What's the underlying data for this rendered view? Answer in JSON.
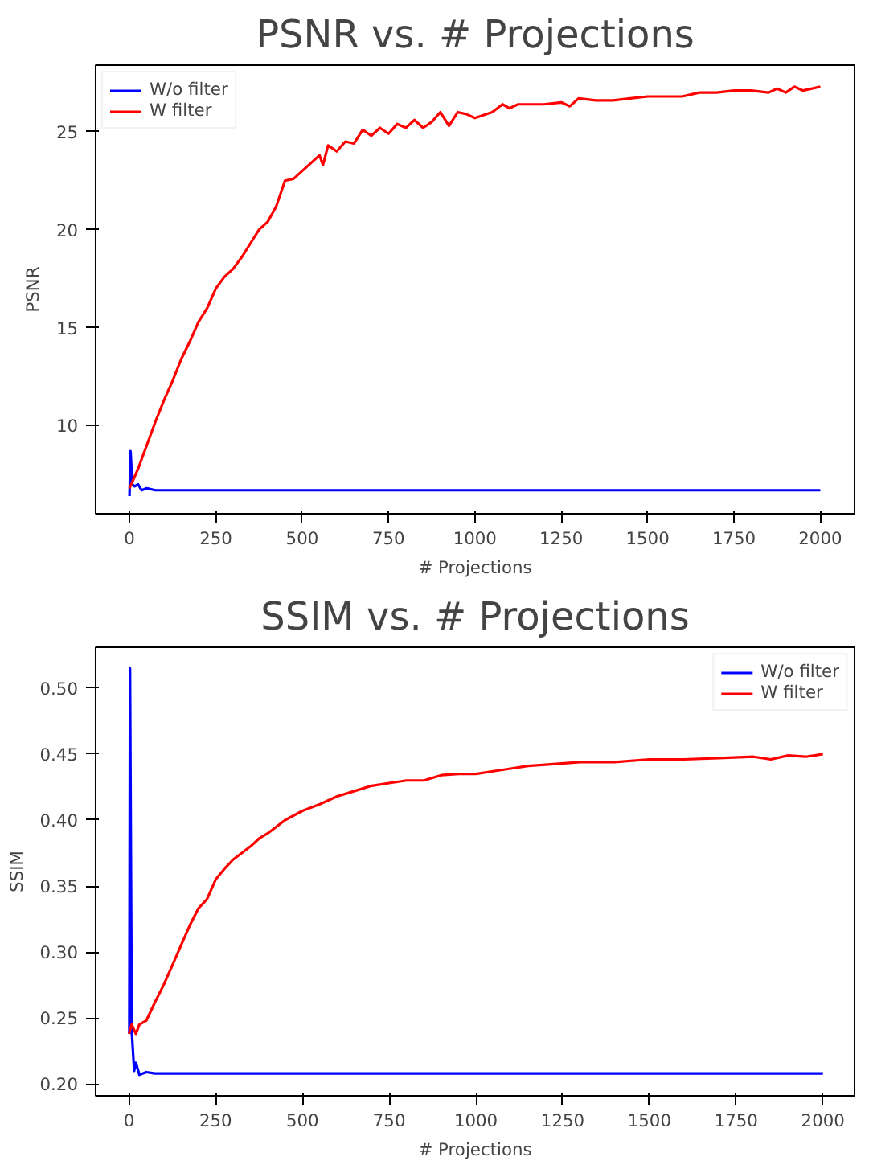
{
  "chart_data": [
    {
      "type": "line",
      "title": "PSNR vs. # Projections",
      "xlabel": "# Projections",
      "ylabel": "PSNR",
      "xlim": [
        -98,
        2099
      ],
      "ylim": [
        5.5,
        28.4
      ],
      "xticks": [
        0,
        250,
        500,
        750,
        1000,
        1250,
        1500,
        1750,
        2000
      ],
      "yticks": [
        10,
        15,
        20,
        25
      ],
      "grid": false,
      "legend": "top left",
      "series": [
        {
          "name": "W/o filter",
          "color": "#0000ff",
          "x": [
            0,
            3,
            8,
            15,
            25,
            35,
            50,
            75,
            100,
            2000
          ],
          "values": [
            6.4,
            8.7,
            7.0,
            6.9,
            7.0,
            6.7,
            6.8,
            6.7,
            6.7,
            6.7
          ]
        },
        {
          "name": "W filter",
          "color": "#ff0000",
          "x": [
            0,
            10,
            25,
            50,
            75,
            100,
            125,
            150,
            175,
            200,
            225,
            250,
            275,
            300,
            325,
            350,
            375,
            400,
            425,
            450,
            475,
            500,
            525,
            550,
            560,
            575,
            600,
            625,
            650,
            675,
            700,
            725,
            750,
            775,
            800,
            825,
            850,
            875,
            900,
            925,
            950,
            975,
            1000,
            1050,
            1080,
            1100,
            1125,
            1200,
            1250,
            1275,
            1300,
            1350,
            1400,
            1450,
            1500,
            1550,
            1600,
            1650,
            1700,
            1750,
            1800,
            1850,
            1875,
            1900,
            1925,
            1950,
            2000
          ],
          "values": [
            6.8,
            7.2,
            7.8,
            9.0,
            10.2,
            11.3,
            12.3,
            13.4,
            14.3,
            15.3,
            16.0,
            17.0,
            17.6,
            18.0,
            18.6,
            19.3,
            20.0,
            20.4,
            21.2,
            22.5,
            22.6,
            23.0,
            23.4,
            23.8,
            23.3,
            24.3,
            24.0,
            24.5,
            24.4,
            25.1,
            24.8,
            25.2,
            24.9,
            25.4,
            25.2,
            25.6,
            25.2,
            25.5,
            26.0,
            25.3,
            26.0,
            25.9,
            25.7,
            26.0,
            26.4,
            26.2,
            26.4,
            26.4,
            26.5,
            26.3,
            26.7,
            26.6,
            26.6,
            26.7,
            26.8,
            26.8,
            26.8,
            27.0,
            27.0,
            27.1,
            27.1,
            27.0,
            27.2,
            27.0,
            27.3,
            27.1,
            27.3
          ]
        }
      ]
    },
    {
      "type": "line",
      "title": "SSIM vs. # Projections",
      "xlabel": "# Projections",
      "ylabel": "SSIM",
      "xlim": [
        -96,
        2091
      ],
      "ylim": [
        0.191,
        0.531
      ],
      "xticks": [
        0,
        250,
        500,
        750,
        1000,
        1250,
        1500,
        1750,
        2000
      ],
      "yticks": [
        {
          "value": 0.2,
          "label": "0.20"
        },
        {
          "value": 0.25,
          "label": "0.25"
        },
        {
          "value": 0.3,
          "label": "0.30"
        },
        {
          "value": 0.35,
          "label": "0.35"
        },
        {
          "value": 0.4,
          "label": "0.40"
        },
        {
          "value": 0.45,
          "label": "0.45"
        },
        {
          "value": 0.5,
          "label": "0.50"
        }
      ],
      "grid": false,
      "legend": "top right",
      "series": [
        {
          "name": "W/o filter",
          "color": "#0000ff",
          "x": [
            1,
            3,
            8,
            15,
            20,
            30,
            50,
            75,
            100,
            2000
          ],
          "values": [
            0.238,
            0.515,
            0.24,
            0.21,
            0.216,
            0.207,
            0.209,
            0.208,
            0.208,
            0.208
          ]
        },
        {
          "name": "W filter",
          "color": "#ff0000",
          "x": [
            0,
            8,
            20,
            30,
            50,
            75,
            100,
            125,
            150,
            175,
            200,
            225,
            250,
            275,
            300,
            325,
            350,
            375,
            400,
            425,
            450,
            500,
            550,
            600,
            650,
            700,
            750,
            800,
            850,
            900,
            950,
            1000,
            1050,
            1100,
            1150,
            1200,
            1300,
            1400,
            1500,
            1600,
            1700,
            1800,
            1850,
            1900,
            1950,
            2000
          ],
          "values": [
            0.238,
            0.245,
            0.238,
            0.245,
            0.248,
            0.262,
            0.275,
            0.29,
            0.305,
            0.32,
            0.333,
            0.34,
            0.355,
            0.363,
            0.37,
            0.375,
            0.38,
            0.386,
            0.39,
            0.395,
            0.4,
            0.407,
            0.412,
            0.418,
            0.422,
            0.426,
            0.428,
            0.43,
            0.43,
            0.434,
            0.435,
            0.435,
            0.437,
            0.439,
            0.441,
            0.442,
            0.444,
            0.444,
            0.446,
            0.446,
            0.447,
            0.448,
            0.446,
            0.449,
            0.448,
            0.45
          ]
        }
      ]
    }
  ]
}
